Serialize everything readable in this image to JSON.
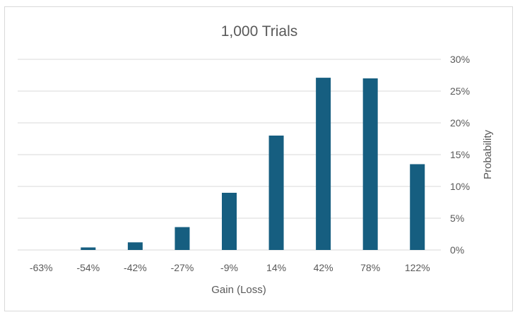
{
  "chart_data": {
    "type": "bar",
    "title": "1,000 Trials",
    "xlabel": "Gain (Loss)",
    "ylabel": "Probability",
    "categories": [
      "-63%",
      "-54%",
      "-42%",
      "-27%",
      "-9%",
      "14%",
      "42%",
      "78%",
      "122%"
    ],
    "values": [
      0.0,
      0.4,
      1.2,
      3.6,
      9.0,
      18.0,
      27.1,
      27.0,
      13.5
    ],
    "value_unit": "%",
    "ylim": [
      0,
      30
    ],
    "yticks": [
      "0%",
      "5%",
      "10%",
      "15%",
      "20%",
      "25%",
      "30%"
    ],
    "y_axis_position": "right",
    "grid": true,
    "legend": "none",
    "bar_color": "#165e80"
  }
}
